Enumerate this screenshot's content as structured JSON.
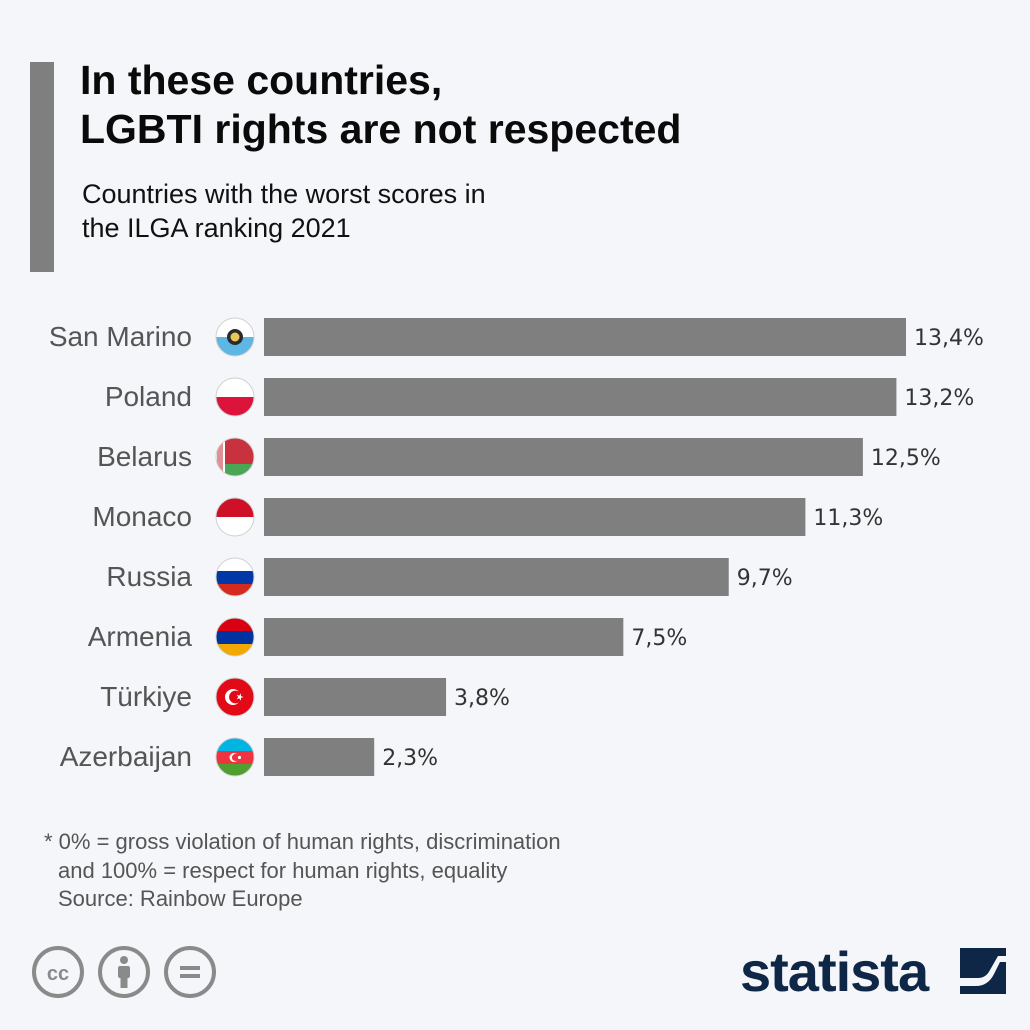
{
  "header": {
    "title_lines": [
      "In these countries,",
      "LGBTI rights are not respected"
    ],
    "subtitle_lines": [
      "Countries with the worst scores in",
      "the ILGA ranking 2021"
    ]
  },
  "chart_data": {
    "type": "bar",
    "orientation": "horizontal",
    "categories": [
      "San Marino",
      "Poland",
      "Belarus",
      "Monaco",
      "Russia",
      "Armenia",
      "Türkiye",
      "Azerbaijan"
    ],
    "values": [
      13.4,
      13.2,
      12.5,
      11.3,
      9.7,
      7.5,
      3.8,
      2.3
    ],
    "value_labels": [
      "13,4%",
      "13,2%",
      "12,5%",
      "11,3%",
      "9,7%",
      "7,5%",
      "3,8%",
      "2,3%"
    ],
    "flag_icons": [
      "san-marino-flag-icon",
      "poland-flag-icon",
      "belarus-flag-icon",
      "monaco-flag-icon",
      "russia-flag-icon",
      "armenia-flag-icon",
      "turkiye-flag-icon",
      "azerbaijan-flag-icon"
    ],
    "bar_color": "#7f7f7f",
    "xlim": [
      0,
      13.4
    ],
    "grid": false,
    "legend": "none"
  },
  "footnote": {
    "lines": [
      "* 0% = gross violation of human rights, discrimination",
      "and 100% = respect for human rights, equality",
      "Source: Rainbow Europe"
    ]
  },
  "license_icons": [
    "creative-commons-icon",
    "attribution-icon",
    "no-derivatives-icon"
  ],
  "brand": {
    "name": "statista",
    "color": "#0f2747"
  }
}
